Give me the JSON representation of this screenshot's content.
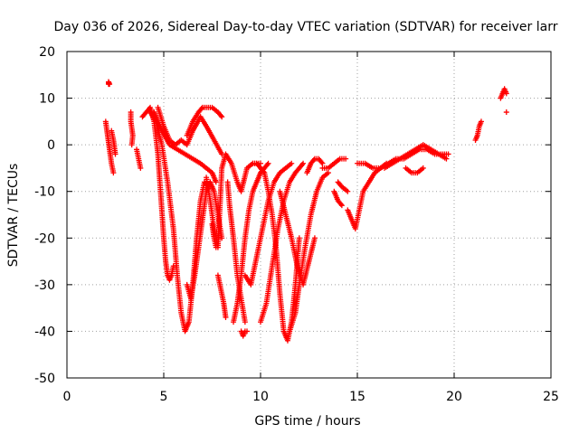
{
  "chart_data": {
    "type": "scatter",
    "title": "Day 036 of 2026, Sidereal Day-to-day VTEC variation (SDTVAR) for receiver larr",
    "xlabel": "GPS time / hours",
    "ylabel": "SDTVAR / TECUs",
    "xlim": [
      0,
      25
    ],
    "ylim": [
      -50,
      20
    ],
    "xticks": [
      0,
      5,
      10,
      15,
      20,
      25
    ],
    "yticks": [
      -50,
      -40,
      -30,
      -20,
      -10,
      0,
      10,
      20
    ],
    "grid": true,
    "marker": "+",
    "color": "#ff0000",
    "series": [
      {
        "name": "s1",
        "x": [
          2.0,
          2.1,
          2.2,
          2.3,
          2.4
        ],
        "y": [
          5,
          2,
          -1,
          -4,
          -6
        ]
      },
      {
        "name": "s2",
        "x": [
          2.15,
          2.15,
          2.2
        ],
        "y": [
          13,
          13.5,
          13
        ]
      },
      {
        "name": "s3",
        "x": [
          2.3,
          2.4,
          2.5
        ],
        "y": [
          3,
          1,
          -2
        ]
      },
      {
        "name": "s4",
        "x": [
          3.3,
          3.3,
          3.4,
          3.35
        ],
        "y": [
          7,
          5,
          2,
          0
        ]
      },
      {
        "name": "s5",
        "x": [
          3.6,
          3.7,
          3.8
        ],
        "y": [
          -1,
          -3,
          -5
        ]
      },
      {
        "name": "s6",
        "x": [
          3.9,
          4.1,
          4.3,
          4.5,
          4.7,
          4.8,
          4.9,
          5.0,
          5.1,
          5.2,
          5.3,
          5.4,
          5.5
        ],
        "y": [
          6,
          7,
          8,
          5,
          -2,
          -8,
          -14,
          -20,
          -25,
          -28,
          -29,
          -28,
          -26
        ]
      },
      {
        "name": "s7",
        "x": [
          4.3,
          4.6,
          4.9,
          5.2,
          5.5,
          5.7,
          5.9,
          6.1,
          6.3,
          6.5,
          6.7,
          6.9,
          7.1,
          7.3
        ],
        "y": [
          7,
          5,
          0,
          -8,
          -18,
          -28,
          -36,
          -40,
          -38,
          -30,
          -20,
          -12,
          -8,
          -9
        ]
      },
      {
        "name": "s8",
        "x": [
          4.5,
          4.9,
          5.3,
          5.7,
          6.1,
          6.5,
          6.9,
          7.2,
          7.5,
          7.7
        ],
        "y": [
          7,
          3,
          0,
          -1,
          -2,
          -3,
          -4,
          -5,
          -6,
          -8
        ]
      },
      {
        "name": "s9",
        "x": [
          4.7,
          5.0,
          5.3,
          5.6,
          5.9,
          6.2,
          6.5,
          6.9,
          7.2,
          7.6,
          8.0
        ],
        "y": [
          8,
          4,
          1,
          0,
          1,
          0,
          3,
          6,
          4,
          1,
          -2
        ]
      },
      {
        "name": "s10",
        "x": [
          6.2,
          6.5,
          6.8,
          7.0,
          7.2,
          7.5,
          7.8,
          8.0
        ],
        "y": [
          2,
          5,
          7,
          8,
          8,
          8,
          7,
          6
        ]
      },
      {
        "name": "s11",
        "x": [
          6.2,
          6.4,
          6.6,
          6.8,
          7.0,
          7.2,
          7.4,
          7.6,
          7.8,
          8.0
        ],
        "y": [
          -30,
          -33,
          -28,
          -22,
          -16,
          -10,
          -8,
          -10,
          -15,
          -20
        ]
      },
      {
        "name": "s12",
        "x": [
          7.2,
          7.4,
          7.6,
          7.8,
          8.0,
          8.2,
          8.5,
          8.8,
          9.0,
          9.3,
          9.6,
          9.8,
          10.0
        ],
        "y": [
          -7,
          -12,
          -18,
          -22,
          -5,
          -2,
          -4,
          -8,
          -10,
          -5,
          -4,
          -4,
          -4
        ]
      },
      {
        "name": "s13",
        "x": [
          7.5,
          7.6,
          7.7
        ],
        "y": [
          -17,
          -20,
          -22
        ]
      },
      {
        "name": "s14",
        "x": [
          7.8,
          7.9,
          8.0,
          8.1,
          8.2
        ],
        "y": [
          -28,
          -30,
          -32,
          -34,
          -37
        ]
      },
      {
        "name": "s15",
        "x": [
          8.6,
          8.8,
          9.0,
          9.2,
          9.4,
          9.6,
          9.8,
          10.0,
          10.2,
          10.4
        ],
        "y": [
          -38,
          -34,
          -28,
          -20,
          -14,
          -10,
          -8,
          -6,
          -5,
          -4
        ]
      },
      {
        "name": "s16",
        "x": [
          8.3,
          8.4,
          8.6,
          8.8,
          9.0,
          9.2
        ],
        "y": [
          -8,
          -13,
          -20,
          -28,
          -33,
          -38
        ]
      },
      {
        "name": "s17",
        "x": [
          9.0,
          9.1,
          9.2,
          9.3
        ],
        "y": [
          -40,
          -41,
          -40,
          -40
        ]
      },
      {
        "name": "s18",
        "x": [
          9.6,
          9.8,
          10.0,
          10.2,
          10.4,
          10.6,
          10.8,
          11.0,
          11.2,
          11.4,
          11.6,
          11.8,
          12.0
        ],
        "y": [
          -4,
          -4,
          -5,
          -6,
          -10,
          -15,
          -22,
          -32,
          -40,
          -42,
          -38,
          -30,
          -20
        ]
      },
      {
        "name": "s19",
        "x": [
          9.2,
          9.5,
          9.8,
          10.1,
          10.4,
          10.7,
          11.0,
          11.3,
          11.6
        ],
        "y": [
          -28,
          -30,
          -24,
          -18,
          -12,
          -8,
          -6,
          -5,
          -4
        ]
      },
      {
        "name": "s20",
        "x": [
          10.0,
          10.3,
          10.6,
          10.9,
          11.2,
          11.5,
          11.8,
          12.0,
          12.2
        ],
        "y": [
          -38,
          -34,
          -26,
          -18,
          -12,
          -8,
          -6,
          -5,
          -4
        ]
      },
      {
        "name": "s21",
        "x": [
          11.0,
          11.3,
          11.6,
          11.9,
          12.2,
          12.5,
          12.8
        ],
        "y": [
          -10,
          -15,
          -20,
          -26,
          -30,
          -25,
          -20
        ]
      },
      {
        "name": "s22",
        "x": [
          11.5,
          11.8,
          12.0,
          12.3,
          12.6,
          12.9,
          13.2,
          13.5
        ],
        "y": [
          -40,
          -36,
          -30,
          -22,
          -15,
          -10,
          -7,
          -6
        ]
      },
      {
        "name": "s23",
        "x": [
          12.4,
          12.6,
          12.8,
          13.0,
          13.2
        ],
        "y": [
          -6,
          -4,
          -3,
          -3,
          -4
        ]
      },
      {
        "name": "s24",
        "x": [
          13.2,
          13.5,
          13.8,
          14.1,
          14.4
        ],
        "y": [
          -5,
          -5,
          -4,
          -3,
          -3
        ]
      },
      {
        "name": "s25",
        "x": [
          13.8,
          14.0,
          14.2
        ],
        "y": [
          -10,
          -12,
          -13
        ]
      },
      {
        "name": "s26",
        "x": [
          14.0,
          14.2,
          14.5
        ],
        "y": [
          -8,
          -9,
          -10
        ]
      },
      {
        "name": "s27",
        "x": [
          14.5,
          14.7,
          14.9,
          15.1,
          15.3,
          15.6,
          15.9,
          16.2,
          16.5
        ],
        "y": [
          -14,
          -16,
          -18,
          -14,
          -10,
          -8,
          -6,
          -5,
          -4
        ]
      },
      {
        "name": "s28",
        "x": [
          15.0,
          15.4,
          15.8,
          16.2,
          16.6,
          17.0,
          17.4,
          17.8,
          18.2,
          18.6,
          19.0,
          19.4,
          19.7
        ],
        "y": [
          -4,
          -4,
          -5,
          -5,
          -4,
          -3,
          -3,
          -2,
          -1,
          -1,
          -2,
          -2,
          -2
        ]
      },
      {
        "name": "s29",
        "x": [
          16.4,
          16.8,
          17.2,
          17.6,
          18.0,
          18.4,
          18.8,
          19.2,
          19.6
        ],
        "y": [
          -5,
          -4,
          -3,
          -2,
          -1,
          0,
          -1,
          -2,
          -3
        ]
      },
      {
        "name": "s30",
        "x": [
          17.5,
          17.8,
          18.1,
          18.4
        ],
        "y": [
          -5,
          -6,
          -6,
          -5
        ]
      },
      {
        "name": "s31",
        "x": [
          21.1,
          21.2,
          21.3,
          21.4
        ],
        "y": [
          1,
          2,
          4,
          5
        ]
      },
      {
        "name": "s32",
        "x": [
          22.4,
          22.5,
          22.6,
          22.7
        ],
        "y": [
          10,
          11,
          12,
          11
        ]
      },
      {
        "name": "s33",
        "x": [
          22.7
        ],
        "y": [
          7
        ]
      }
    ]
  }
}
